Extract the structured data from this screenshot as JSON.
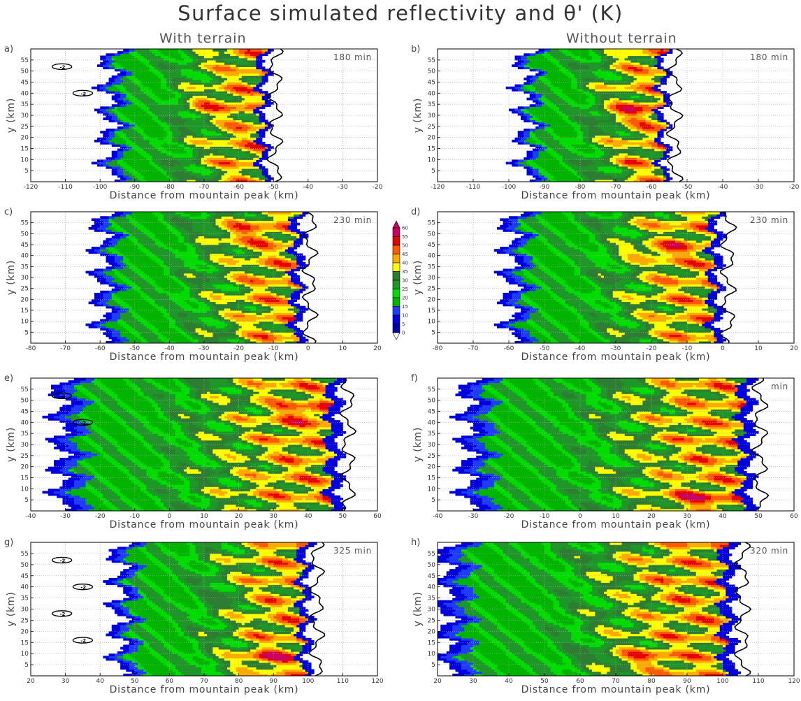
{
  "title": "Surface simulated reflectivity and θ' (K)",
  "column_titles": [
    "With terrain",
    "Without terrain"
  ],
  "colors": {
    "zero_color": "#ffffff",
    "contour_color": "#000000",
    "grid_color": "#aaaaaa",
    "colorbar_levels": [
      {
        "value": 0,
        "color": "#ffffff"
      },
      {
        "value": 5,
        "color": "#0000aa"
      },
      {
        "value": 10,
        "color": "#0000dd"
      },
      {
        "value": 15,
        "color": "#1e3cff"
      },
      {
        "value": 20,
        "color": "#00b400"
      },
      {
        "value": 25,
        "color": "#00dc00"
      },
      {
        "value": 30,
        "color": "#1e9628"
      },
      {
        "value": 35,
        "color": "#2d7d32"
      },
      {
        "value": 40,
        "color": "#ffff00"
      },
      {
        "value": 45,
        "color": "#ffaa00"
      },
      {
        "value": 50,
        "color": "#ff5a00"
      },
      {
        "value": 55,
        "color": "#e60000"
      },
      {
        "value": 60,
        "color": "#c80064"
      }
    ]
  },
  "colorbar_ticks": [
    "60",
    "55",
    "50",
    "45",
    "40",
    "35",
    "30",
    "25",
    "20",
    "15",
    "10",
    "5",
    "0"
  ],
  "chart_data": [
    {
      "panel": "a)",
      "type": "heatmap",
      "time_label": "180 min",
      "column": "With terrain",
      "xlabel": "Distance from mountain peak (km)",
      "ylabel": "y (km)",
      "xlim": [
        -120,
        -20
      ],
      "ylim": [
        0,
        60
      ],
      "xticks": [
        -120,
        -110,
        -100,
        -90,
        -80,
        -70,
        -60,
        -50,
        -40,
        -30,
        -20
      ],
      "yticks": [
        5,
        10,
        15,
        20,
        25,
        30,
        35,
        40,
        45,
        50,
        55
      ],
      "echo_west_edge_km": -98,
      "echo_east_edge_km": -52,
      "max_dbz_center": {
        "x": -70,
        "y": 35
      },
      "contour_labels": [
        "-2",
        "-2"
      ]
    },
    {
      "panel": "b)",
      "type": "heatmap",
      "time_label": "180 min",
      "column": "Without terrain",
      "xlabel": "Distance from mountain peak (km)",
      "ylabel": "y (km)",
      "xlim": [
        -120,
        -20
      ],
      "ylim": [
        0,
        60
      ],
      "xticks": [
        -120,
        -110,
        -100,
        -90,
        -80,
        -70,
        -60,
        -50,
        -40,
        -30,
        -20
      ],
      "yticks": [
        5,
        10,
        15,
        20,
        25,
        30,
        35,
        40,
        45,
        50,
        55
      ],
      "echo_west_edge_km": -96,
      "echo_east_edge_km": -56,
      "max_dbz_center": {
        "x": -66,
        "y": 32
      },
      "contour_labels": []
    },
    {
      "panel": "c)",
      "type": "heatmap",
      "time_label": "230 min",
      "column": "With terrain",
      "xlabel": "Distance from mountain peak (km)",
      "ylabel": "y (km)",
      "xlim": [
        -80,
        20
      ],
      "ylim": [
        0,
        60
      ],
      "xticks": [
        -80,
        -70,
        -60,
        -50,
        -40,
        -30,
        -20,
        -10,
        0,
        10,
        20
      ],
      "yticks": [
        5,
        10,
        15,
        20,
        25,
        30,
        35,
        40,
        45,
        50,
        55
      ],
      "echo_west_edge_km": -60,
      "echo_east_edge_km": -2,
      "max_dbz_center": {
        "x": -20,
        "y": 50
      },
      "contour_labels": []
    },
    {
      "panel": "d)",
      "type": "heatmap",
      "time_label": "230 min",
      "column": "Without terrain",
      "xlabel": "Distance from mountain peak (km)",
      "ylabel": "y (km)",
      "xlim": [
        -80,
        20
      ],
      "ylim": [
        0,
        60
      ],
      "xticks": [
        -80,
        -70,
        -60,
        -50,
        -40,
        -30,
        -20,
        -10,
        0,
        10,
        20
      ],
      "yticks": [
        5,
        10,
        15,
        20,
        25,
        30,
        35,
        40,
        45,
        50,
        55
      ],
      "echo_west_edge_km": -60,
      "echo_east_edge_km": -1,
      "max_dbz_center": {
        "x": -18,
        "y": 42
      },
      "contour_labels": []
    },
    {
      "panel": "e)",
      "type": "heatmap",
      "time_label": "",
      "column": "With terrain",
      "xlabel": "Distance from mountain peak (km)",
      "ylabel": "y (km)",
      "xlim": [
        -40,
        60
      ],
      "ylim": [
        0,
        60
      ],
      "xticks": [
        -40,
        -30,
        -20,
        -10,
        0,
        10,
        20,
        30,
        40,
        50,
        60
      ],
      "yticks": [
        5,
        10,
        15,
        20,
        25,
        30,
        35,
        40,
        45,
        50,
        55
      ],
      "echo_west_edge_km": -32,
      "echo_east_edge_km": 49,
      "max_dbz_center": {
        "x": 40,
        "y": 44
      },
      "contour_labels": [
        "-2",
        "-2"
      ]
    },
    {
      "panel": "f)",
      "type": "heatmap",
      "time_label": "min",
      "column": "Without terrain",
      "xlabel": "Distance from mountain peak (km)",
      "ylabel": "y (km)",
      "xlim": [
        -40,
        60
      ],
      "ylim": [
        0,
        60
      ],
      "xticks": [
        -40,
        -30,
        -20,
        -10,
        0,
        10,
        20,
        30,
        40,
        50,
        60
      ],
      "yticks": [
        5,
        10,
        15,
        20,
        25,
        30,
        35,
        40,
        45,
        50,
        55
      ],
      "echo_west_edge_km": -32,
      "echo_east_edge_km": 48,
      "max_dbz_center": {
        "x": 33,
        "y": 5
      },
      "contour_labels": []
    },
    {
      "panel": "g)",
      "type": "heatmap",
      "time_label": "325 min",
      "column": "With terrain",
      "xlabel": "Distance from mountain peak (km)",
      "ylabel": "y (km)",
      "xlim": [
        20,
        120
      ],
      "ylim": [
        0,
        60
      ],
      "xticks": [
        20,
        30,
        40,
        50,
        60,
        70,
        80,
        90,
        100,
        110,
        120
      ],
      "yticks": [
        5,
        10,
        15,
        20,
        25,
        30,
        35,
        40,
        45,
        50,
        55
      ],
      "echo_west_edge_km": 45,
      "echo_east_edge_km": 100,
      "max_dbz_center": {
        "x": 88,
        "y": 8
      },
      "contour_labels": [
        "-2",
        "-2",
        "-2",
        "-2"
      ]
    },
    {
      "panel": "h)",
      "type": "heatmap",
      "time_label": "320 min",
      "column": "Without terrain",
      "xlabel": "Distance from mountain peak (km)",
      "ylabel": "y (km)",
      "xlim": [
        20,
        120
      ],
      "ylim": [
        0,
        60
      ],
      "xticks": [
        20,
        30,
        40,
        50,
        60,
        70,
        80,
        90,
        100,
        110,
        120
      ],
      "yticks": [
        5,
        10,
        15,
        20,
        25,
        30,
        35,
        40,
        45,
        50,
        55
      ],
      "echo_west_edge_km": 22,
      "echo_east_edge_km": 103,
      "max_dbz_center": {
        "x": 75,
        "y": 8
      },
      "contour_labels": []
    }
  ]
}
